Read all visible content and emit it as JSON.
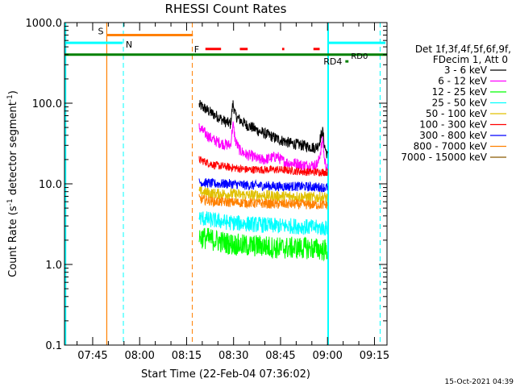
{
  "chart_data": {
    "type": "line",
    "title": "RHESSI Count Rates",
    "xlabel": "Start Time (22-Feb-04 07:36:02)",
    "ylabel_main": "Count Rate (s",
    "ylabel_sup": "-1",
    "ylabel_tail": " detector segment",
    "ylabel_end": ")",
    "x_unit": "minutes since 07:36:02",
    "xlim": [
      0,
      103
    ],
    "ylim": [
      0.1,
      1000
    ],
    "yscale": "log",
    "x_ticks": [
      {
        "t": 9,
        "label": "07:45"
      },
      {
        "t": 24,
        "label": "08:00"
      },
      {
        "t": 39,
        "label": "08:15"
      },
      {
        "t": 54,
        "label": "08:30"
      },
      {
        "t": 69,
        "label": "08:45"
      },
      {
        "t": 84,
        "label": "09:00"
      },
      {
        "t": 99,
        "label": "09:15"
      }
    ],
    "y_ticks": [
      {
        "v": 0.1,
        "label": "0.1"
      },
      {
        "v": 1,
        "label": "1.0"
      },
      {
        "v": 10,
        "label": "10.0"
      },
      {
        "v": 100,
        "label": "100.0"
      },
      {
        "v": 1000,
        "label": "1000.0"
      }
    ],
    "legend_header": [
      "Det 1f,3f,4f,5f,6f,9f,",
      "FDecim 1, Att 0"
    ],
    "legend": [
      {
        "label": "3 - 6 keV",
        "color": "#000000"
      },
      {
        "label": "6 - 12 keV",
        "color": "#ff00ff"
      },
      {
        "label": "12 - 25 keV",
        "color": "#00ff00"
      },
      {
        "label": "25 - 50 keV",
        "color": "#00ffff"
      },
      {
        "label": "50 - 100 keV",
        "color": "#e0c000"
      },
      {
        "label": "100 - 300 keV",
        "color": "#ff0000"
      },
      {
        "label": "300 - 800 keV",
        "color": "#0000ff"
      },
      {
        "label": "800 - 7000 keV",
        "color": "#ff8000"
      },
      {
        "label": "7000 - 15000 keV",
        "color": "#8b5a00"
      }
    ],
    "data_window": [
      43,
      84
    ],
    "series": [
      {
        "band": "3 - 6 keV",
        "color": "#000000",
        "noise": 0.07,
        "points": [
          [
            43,
            95
          ],
          [
            45,
            85
          ],
          [
            47,
            75
          ],
          [
            49,
            68
          ],
          [
            51,
            60
          ],
          [
            53,
            55
          ],
          [
            53.8,
            100
          ],
          [
            54.6,
            70
          ],
          [
            56,
            62
          ],
          [
            58,
            54
          ],
          [
            60,
            50
          ],
          [
            62,
            45
          ],
          [
            64,
            42
          ],
          [
            66,
            39
          ],
          [
            68,
            36
          ],
          [
            70,
            34
          ],
          [
            72,
            32
          ],
          [
            74,
            31
          ],
          [
            76,
            30
          ],
          [
            78,
            29
          ],
          [
            80,
            28
          ],
          [
            81,
            30
          ],
          [
            82,
            40
          ],
          [
            82.5,
            45
          ],
          [
            83,
            30
          ],
          [
            84,
            22
          ]
        ]
      },
      {
        "band": "6 - 12 keV",
        "color": "#ff00ff",
        "noise": 0.07,
        "points": [
          [
            43,
            50
          ],
          [
            45,
            42
          ],
          [
            47,
            36
          ],
          [
            49,
            33
          ],
          [
            51,
            31
          ],
          [
            53,
            30
          ],
          [
            53.8,
            55
          ],
          [
            54.6,
            34
          ],
          [
            56,
            26
          ],
          [
            58,
            23
          ],
          [
            60,
            22
          ],
          [
            62,
            20
          ],
          [
            64,
            20
          ],
          [
            66,
            21
          ],
          [
            68,
            22
          ],
          [
            69,
            20
          ],
          [
            70,
            19
          ],
          [
            72,
            18
          ],
          [
            74,
            18
          ],
          [
            76,
            17
          ],
          [
            78,
            17
          ],
          [
            80,
            17
          ],
          [
            81,
            18
          ],
          [
            82,
            28
          ],
          [
            82.5,
            36
          ],
          [
            83,
            20
          ],
          [
            84,
            15
          ]
        ]
      },
      {
        "band": "100 - 300 keV",
        "color": "#ff0000",
        "noise": 0.05,
        "points": [
          [
            43,
            20
          ],
          [
            48,
            17
          ],
          [
            53,
            16
          ],
          [
            58,
            15
          ],
          [
            63,
            15
          ],
          [
            68,
            15
          ],
          [
            73,
            14.5
          ],
          [
            78,
            14
          ],
          [
            84,
            14
          ]
        ]
      },
      {
        "band": "300 - 800 keV",
        "color": "#0000ff",
        "noise": 0.06,
        "points": [
          [
            43,
            10.5
          ],
          [
            48,
            10
          ],
          [
            53,
            10
          ],
          [
            58,
            9.6
          ],
          [
            63,
            9.5
          ],
          [
            68,
            9.3
          ],
          [
            73,
            9.3
          ],
          [
            78,
            9.2
          ],
          [
            84,
            9
          ]
        ]
      },
      {
        "band": "50 - 100 keV",
        "color": "#e0c000",
        "noise": 0.07,
        "points": [
          [
            43,
            8
          ],
          [
            48,
            7.5
          ],
          [
            53,
            7.5
          ],
          [
            58,
            7.2
          ],
          [
            63,
            7.2
          ],
          [
            68,
            7
          ],
          [
            73,
            7
          ],
          [
            78,
            6.8
          ],
          [
            84,
            6.8
          ]
        ]
      },
      {
        "band": "800 - 7000 keV",
        "color": "#ff8000",
        "noise": 0.06,
        "points": [
          [
            43,
            6.5
          ],
          [
            48,
            6
          ],
          [
            53,
            5.9
          ],
          [
            58,
            5.8
          ],
          [
            63,
            5.7
          ],
          [
            68,
            5.6
          ],
          [
            73,
            5.6
          ],
          [
            78,
            5.5
          ],
          [
            84,
            5.5
          ]
        ]
      },
      {
        "band": "25 - 50 keV",
        "color": "#00ffff",
        "noise": 0.1,
        "points": [
          [
            43,
            3.8
          ],
          [
            48,
            3.5
          ],
          [
            53,
            3.3
          ],
          [
            58,
            3.2
          ],
          [
            63,
            3.1
          ],
          [
            68,
            3
          ],
          [
            73,
            3
          ],
          [
            78,
            2.9
          ],
          [
            84,
            2.8
          ]
        ]
      },
      {
        "band": "12 - 25 keV",
        "color": "#00ff00",
        "noise": 0.14,
        "points": [
          [
            43,
            2.2
          ],
          [
            48,
            2
          ],
          [
            53,
            1.8
          ],
          [
            58,
            1.7
          ],
          [
            63,
            1.7
          ],
          [
            68,
            1.6
          ],
          [
            73,
            1.6
          ],
          [
            78,
            1.6
          ],
          [
            84,
            1.5
          ]
        ]
      }
    ],
    "solid_lines": [
      {
        "t": 13.5,
        "color": "#ff8000"
      },
      {
        "t": 0.3,
        "color": "#00ffff"
      },
      {
        "t": 84.2,
        "color": "#00ffff"
      }
    ],
    "dashed_lines": [
      {
        "t": 18.8,
        "color": "#00ffff"
      },
      {
        "t": 40.8,
        "color": "#ff8000"
      },
      {
        "t": 100.8,
        "color": "#00ffff"
      }
    ],
    "flag_bars": [
      {
        "label": "S",
        "color": "#ff8000",
        "t0": 13.5,
        "t1": 41,
        "y": 700,
        "label_side": "left"
      },
      {
        "label": "N",
        "color": "#00ffff",
        "t0": 0,
        "t1": 18.5,
        "y": 560,
        "label_side": "right"
      },
      {
        "label": "",
        "color": "#00ffff",
        "t0": 84.2,
        "t1": 102.5,
        "y": 560,
        "label_side": "none"
      },
      {
        "label": "",
        "color": "#008000",
        "t0": 0,
        "t1": 103,
        "y": 400,
        "label_side": "none"
      },
      {
        "label": "RD4",
        "color": "#008000",
        "t0": 89.7,
        "t1": 90.7,
        "y": 330,
        "label_side": "left"
      }
    ],
    "flare_segments": [
      [
        45,
        50
      ],
      [
        56,
        58.5
      ],
      [
        69.5,
        70.2
      ],
      [
        79.5,
        81.5
      ]
    ],
    "flare_label": "F",
    "flare_y": 470,
    "rd0_label": "RD0",
    "rd0_t": 91.5,
    "rd0_y": 370
  },
  "timestamp": "15-Oct-2021 04:39"
}
